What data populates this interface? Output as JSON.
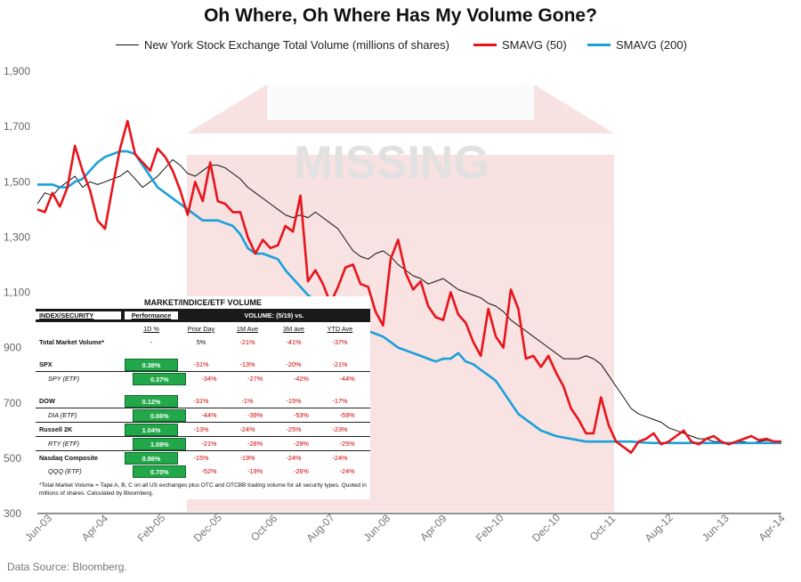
{
  "title": "Oh Where, Oh Where Has My Volume Gone?",
  "source": "Data Source: Bloomberg.",
  "watermark": "MISSING",
  "colors": {
    "volume": "#111111",
    "sma50": "#e8141b",
    "sma200": "#1aa0db",
    "background": "#ffffff"
  },
  "chart_data": {
    "type": "line",
    "title": "Oh Where, Oh Where Has My Volume Gone?",
    "ylim": [
      300,
      1900
    ],
    "yticks": [
      300,
      500,
      700,
      900,
      "1,100",
      "1,300",
      "1,500",
      "1,700",
      "1,900"
    ],
    "xticks": [
      "Jun-03",
      "Apr-04",
      "Feb-05",
      "Dec-05",
      "Oct-06",
      "Aug-07",
      "Jun-08",
      "Apr-09",
      "Feb-10",
      "Dec-10",
      "Oct-11",
      "Aug-12",
      "Jun-13",
      "Apr-14"
    ],
    "grid": false,
    "legend_placement": "top",
    "series": [
      {
        "name": "New York Stock Exchange Total Volume (millions of shares)",
        "color": "#111111",
        "values": [
          1420,
          1460,
          1450,
          1480,
          1500,
          1520,
          1480,
          1500,
          1490,
          1500,
          1510,
          1520,
          1540,
          1510,
          1480,
          1500,
          1520,
          1550,
          1580,
          1560,
          1530,
          1520,
          1540,
          1560,
          1560,
          1550,
          1530,
          1510,
          1480,
          1460,
          1440,
          1420,
          1400,
          1380,
          1370,
          1380,
          1370,
          1390,
          1370,
          1350,
          1330,
          1290,
          1250,
          1230,
          1220,
          1240,
          1250,
          1230,
          1200,
          1180,
          1160,
          1150,
          1130,
          1140,
          1150,
          1130,
          1110,
          1100,
          1090,
          1080,
          1060,
          1050,
          1030,
          1000,
          980,
          960,
          940,
          920,
          900,
          880,
          860,
          860,
          860,
          870,
          860,
          840,
          800,
          760,
          720,
          680,
          660,
          650,
          640,
          630,
          610,
          600,
          590,
          580,
          570,
          570,
          560,
          560,
          555,
          560,
          560,
          555,
          560,
          565,
          560,
          555
        ]
      },
      {
        "name": "SMAVG (50)",
        "color": "#e8141b",
        "values": [
          1400,
          1390,
          1460,
          1410,
          1480,
          1630,
          1540,
          1470,
          1360,
          1330,
          1480,
          1620,
          1720,
          1600,
          1570,
          1540,
          1620,
          1590,
          1540,
          1470,
          1380,
          1500,
          1430,
          1570,
          1430,
          1420,
          1390,
          1390,
          1300,
          1240,
          1290,
          1260,
          1270,
          1340,
          1320,
          1450,
          1140,
          1180,
          1130,
          1060,
          1120,
          1190,
          1200,
          1130,
          1120,
          1030,
          980,
          1220,
          1290,
          1170,
          1110,
          1140,
          1050,
          1010,
          1000,
          1100,
          1020,
          990,
          920,
          870,
          1040,
          940,
          900,
          1110,
          1040,
          860,
          870,
          830,
          870,
          810,
          760,
          680,
          640,
          590,
          590,
          720,
          620,
          560,
          540,
          520,
          560,
          570,
          590,
          550,
          560,
          580,
          600,
          560,
          550,
          570,
          580,
          560,
          550,
          560,
          570,
          580,
          565,
          570,
          560,
          560
        ]
      },
      {
        "name": "SMAVG (200)",
        "color": "#1aa0db",
        "values": [
          1490,
          1490,
          1490,
          1480,
          1480,
          1500,
          1510,
          1540,
          1570,
          1590,
          1600,
          1610,
          1610,
          1600,
          1560,
          1520,
          1480,
          1460,
          1440,
          1420,
          1400,
          1380,
          1360,
          1360,
          1360,
          1350,
          1340,
          1310,
          1260,
          1240,
          1240,
          1230,
          1220,
          1180,
          1150,
          1120,
          1090,
          1070,
          1080,
          1070,
          1050,
          1040,
          1000,
          980,
          960,
          950,
          940,
          920,
          900,
          890,
          880,
          870,
          860,
          850,
          860,
          860,
          880,
          850,
          840,
          820,
          800,
          780,
          740,
          700,
          660,
          640,
          620,
          600,
          590,
          580,
          575,
          570,
          565,
          560,
          560,
          560,
          560,
          560,
          560,
          560,
          558,
          556,
          555,
          555,
          555,
          555,
          555,
          555,
          555,
          555,
          555,
          555,
          555,
          555,
          555,
          555,
          555,
          555,
          555,
          555
        ]
      }
    ]
  },
  "table": {
    "title": "MARKET/INDICE/ETF VOLUME",
    "head": {
      "security": "INDEX/SECURITY",
      "performance": "Performance",
      "volume": "VOLUME:  (5/19) vs."
    },
    "subhead": {
      "perf": "1D %",
      "prior": "Prior Day",
      "m1": "1M Ave",
      "m3": "3M ave",
      "ytd": "YTD Ave"
    },
    "rows": [
      {
        "name": "Total Market Volume*",
        "perf": "-",
        "prior": "5%",
        "m1": "-21%",
        "m3": "-41%",
        "ytd": "-37%"
      },
      {
        "name": "SPX",
        "perf": "0.38%",
        "prior": "-31%",
        "m1": "-13%",
        "m3": "-20%",
        "ytd": "-21%"
      },
      {
        "name": "SPY (ETF)",
        "perf": "0.37%",
        "prior": "-34%",
        "m1": "-27%",
        "m3": "-42%",
        "ytd": "-44%"
      },
      {
        "name": "DOW",
        "perf": "0.12%",
        "prior": "-31%",
        "m1": "-1%",
        "m3": "-15%",
        "ytd": "-17%"
      },
      {
        "name": "DIA (ETF)",
        "perf": "0.06%",
        "prior": "-44%",
        "m1": "-39%",
        "m3": "-53%",
        "ytd": "-59%"
      },
      {
        "name": "Russell 2K",
        "perf": "1.04%",
        "prior": "-13%",
        "m1": "-24%",
        "m3": "-25%",
        "ytd": "-23%"
      },
      {
        "name": "RTY (ETF)",
        "perf": "1.08%",
        "prior": "-21%",
        "m1": "-28%",
        "m3": "-29%",
        "ytd": "-25%"
      },
      {
        "name": "Nasdaq Composite",
        "perf": "0.86%",
        "prior": "-15%",
        "m1": "-19%",
        "m3": "-24%",
        "ytd": "-24%"
      },
      {
        "name": "QQQ (ETF)",
        "perf": "0.70%",
        "prior": "-52%",
        "m1": "-19%",
        "m3": "-26%",
        "ytd": "-24%"
      }
    ],
    "note": "*Total Market Volume = Tape A, B, C on all US exchanges plus OTC and OTCBB trading volume for all security types. Quoted in millions of shares. Calculated by Bloomberg."
  }
}
